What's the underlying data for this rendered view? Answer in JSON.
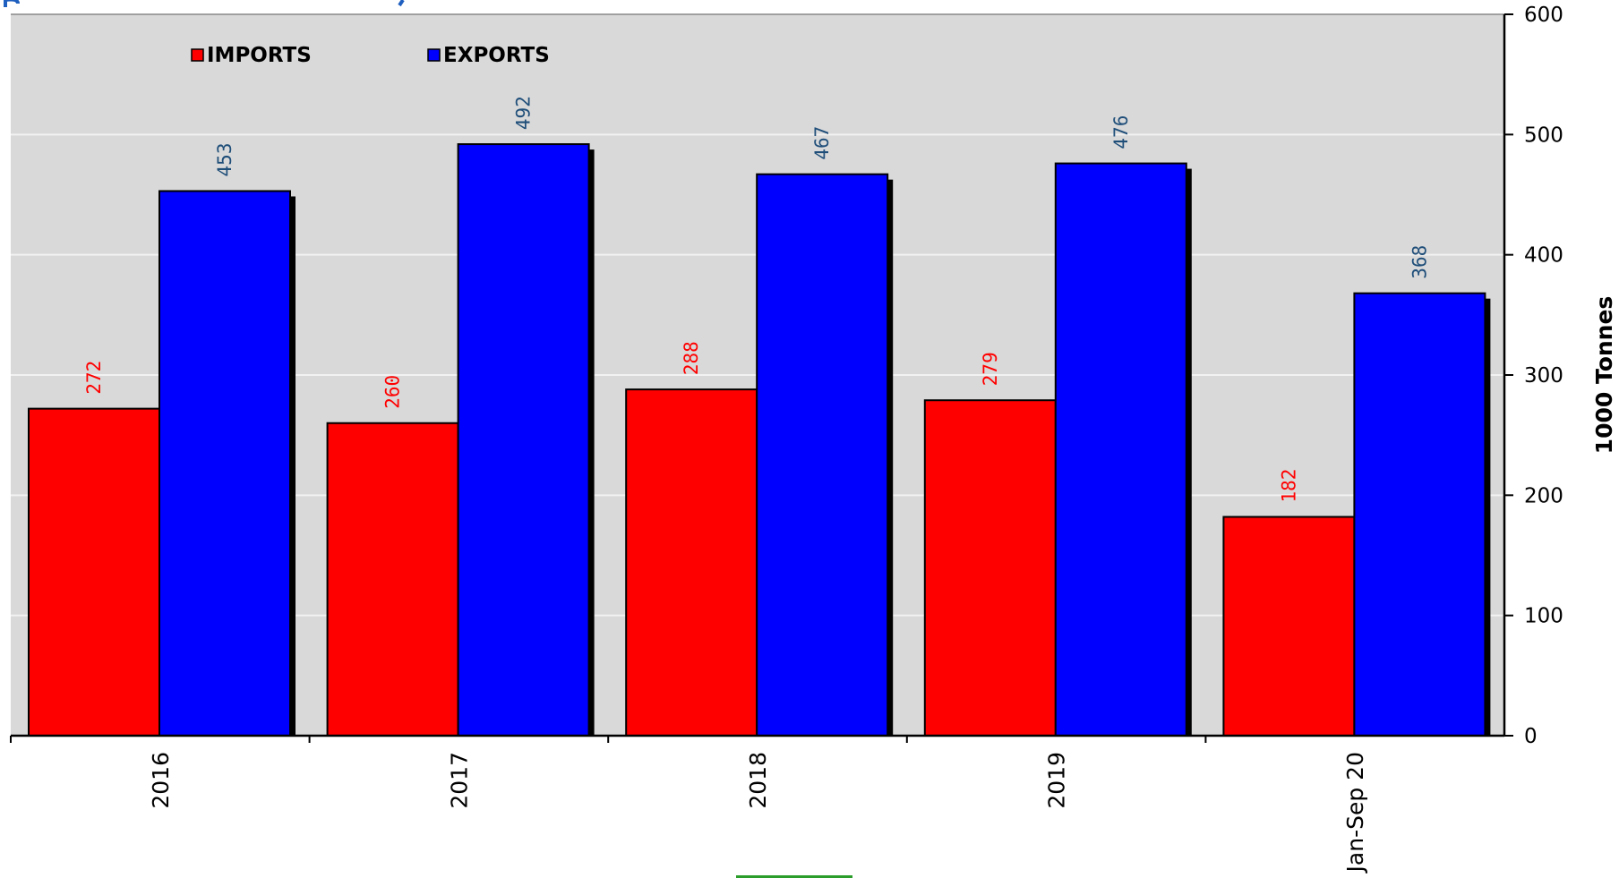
{
  "chart_data": {
    "type": "bar",
    "categories": [
      "2016",
      "2017",
      "2018",
      "2019",
      "Jan-Sep 20"
    ],
    "series": [
      {
        "name": "IMPORTS",
        "color": "#ff0000",
        "label_color": "#ff0000",
        "values": [
          272,
          260,
          288,
          279,
          182
        ]
      },
      {
        "name": "EXPORTS",
        "color": "#0000ff",
        "label_color": "#1f4e79",
        "values": [
          453,
          492,
          467,
          476,
          368
        ]
      }
    ],
    "ylabel": "1000 Tonnes",
    "ylim": [
      0,
      600
    ],
    "yticks": [
      0,
      100,
      200,
      300,
      400,
      500,
      600
    ],
    "grid": true,
    "y_axis_position": "right",
    "legend_position": "top-left",
    "plot_background": "#d9d9d9"
  }
}
